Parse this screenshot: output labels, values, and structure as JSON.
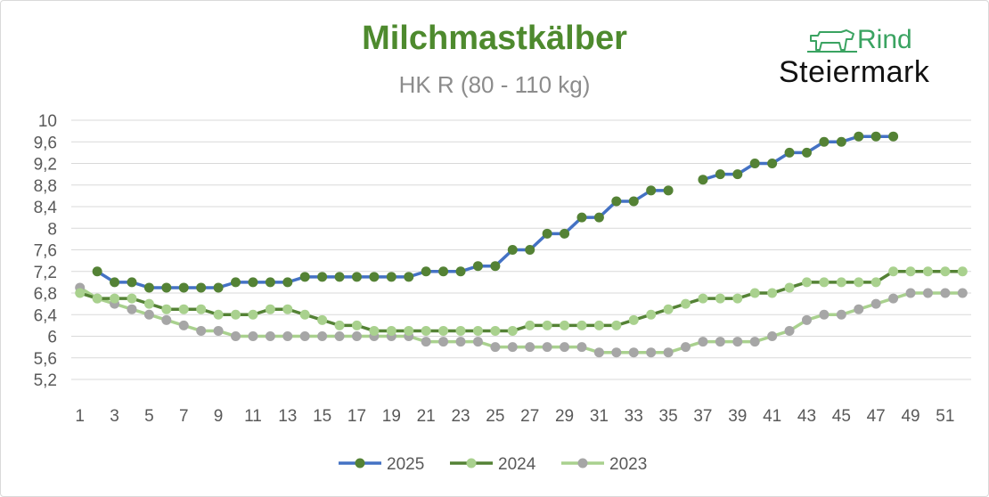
{
  "chart_data": {
    "type": "line",
    "title": "Milchmastkälber",
    "subtitle": "HK R (80 - 110 kg)",
    "xlabel": "",
    "ylabel": "",
    "ylim": [
      5.2,
      10
    ],
    "y_ticks": [
      "5,2",
      "5,6",
      "6",
      "6,4",
      "6,8",
      "7,2",
      "7,6",
      "8",
      "8,4",
      "8,8",
      "9,2",
      "9,6",
      "10"
    ],
    "x_tick_labels": [
      "1",
      "3",
      "5",
      "7",
      "9",
      "11",
      "13",
      "15",
      "17",
      "19",
      "21",
      "23",
      "25",
      "27",
      "29",
      "31",
      "33",
      "35",
      "37",
      "39",
      "41",
      "43",
      "45",
      "47",
      "49",
      "51"
    ],
    "x_range": [
      1,
      52
    ],
    "grid": true,
    "legend_position": "bottom",
    "series": [
      {
        "name": "2025",
        "line_color": "#4472c4",
        "marker_color": "#548235",
        "values": [
          null,
          7.2,
          7.0,
          7.0,
          6.9,
          6.9,
          6.9,
          6.9,
          6.9,
          7.0,
          7.0,
          7.0,
          7.0,
          7.1,
          7.1,
          7.1,
          7.1,
          7.1,
          7.1,
          7.1,
          7.2,
          7.2,
          7.2,
          7.3,
          7.3,
          7.6,
          7.6,
          7.9,
          7.9,
          8.2,
          8.2,
          8.5,
          8.5,
          8.7,
          8.7,
          null,
          8.9,
          9.0,
          9.0,
          9.2,
          9.2,
          9.4,
          9.4,
          9.6,
          9.6,
          9.7,
          9.7,
          9.7,
          null,
          null,
          null,
          null
        ]
      },
      {
        "name": "2024",
        "line_color": "#548235",
        "marker_color": "#a9d18e",
        "values": [
          6.8,
          6.7,
          6.7,
          6.7,
          6.6,
          6.5,
          6.5,
          6.5,
          6.4,
          6.4,
          6.4,
          6.5,
          6.5,
          6.4,
          6.3,
          6.2,
          6.2,
          6.1,
          6.1,
          6.1,
          6.1,
          6.1,
          6.1,
          6.1,
          6.1,
          6.1,
          6.2,
          6.2,
          6.2,
          6.2,
          6.2,
          6.2,
          6.3,
          6.4,
          6.5,
          6.6,
          6.7,
          6.7,
          6.7,
          6.8,
          6.8,
          6.9,
          7.0,
          7.0,
          7.0,
          7.0,
          7.0,
          7.2,
          7.2,
          7.2,
          7.2,
          7.2
        ]
      },
      {
        "name": "2023",
        "line_color": "#a9d18e",
        "marker_color": "#a6a6a6",
        "values": [
          6.9,
          6.7,
          6.6,
          6.5,
          6.4,
          6.3,
          6.2,
          6.1,
          6.1,
          6.0,
          6.0,
          6.0,
          6.0,
          6.0,
          6.0,
          6.0,
          6.0,
          6.0,
          6.0,
          6.0,
          5.9,
          5.9,
          5.9,
          5.9,
          5.8,
          5.8,
          5.8,
          5.8,
          5.8,
          5.8,
          5.7,
          5.7,
          5.7,
          5.7,
          5.7,
          5.8,
          5.9,
          5.9,
          5.9,
          5.9,
          6.0,
          6.1,
          6.3,
          6.4,
          6.4,
          6.5,
          6.6,
          6.7,
          6.8,
          6.8,
          6.8,
          6.8
        ]
      }
    ]
  },
  "logo": {
    "word_top": "Rind",
    "word_bottom": "Steiermark",
    "icon": "cow-icon",
    "color_top": "#3aa361",
    "color_bottom": "#111111"
  },
  "colors": {
    "title": "#4e8a2e",
    "subtitle": "#8c8c8c",
    "grid": "#d9d9d9",
    "tick": "#595959"
  }
}
